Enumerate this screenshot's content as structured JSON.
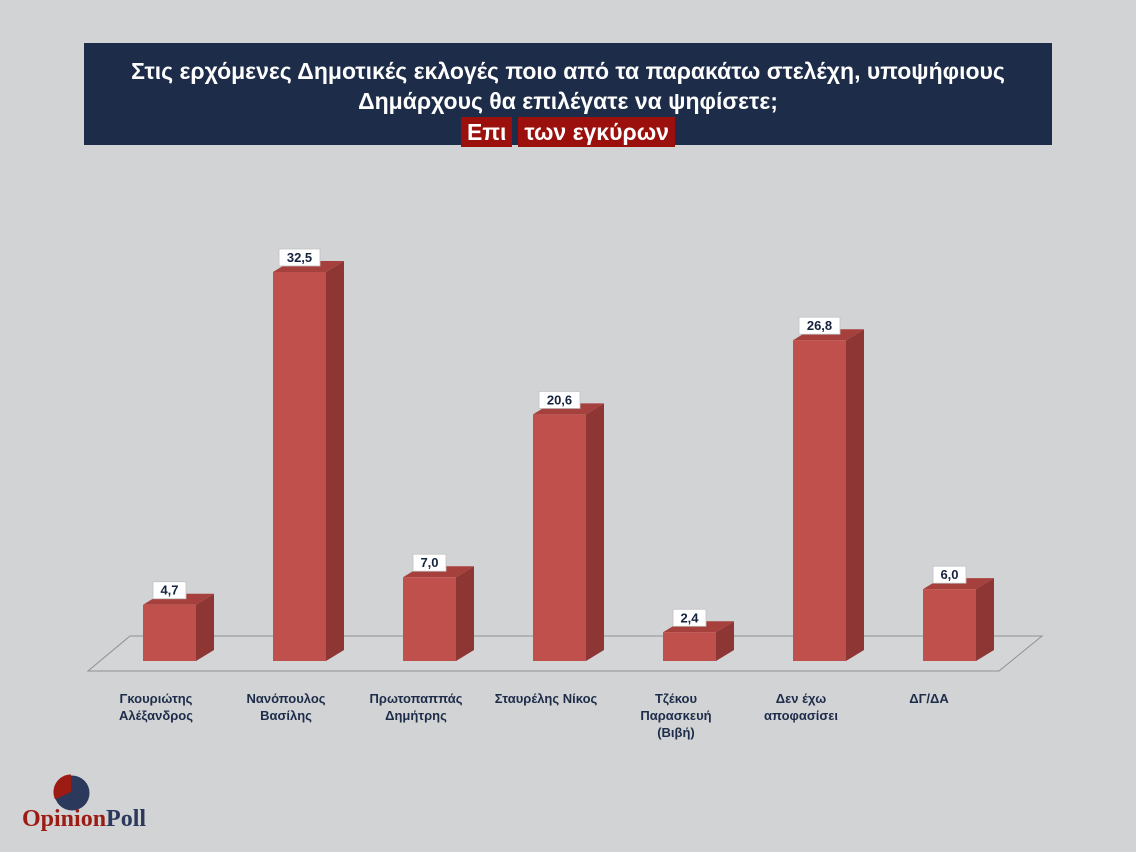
{
  "page": {
    "background": "#d2d3d5"
  },
  "header": {
    "background": "#1d2c49",
    "line1": "Στις ερχόμενες Δημοτικές εκλογές ποιο από τα παρακάτω στελέχη, υποψήφιους",
    "line2": "Δημάρχους θα επιλέγατε να ψηφίσετε;",
    "highlight": {
      "background": "#9b100d",
      "part1": "Επι",
      "part2": "των εγκύρων"
    }
  },
  "chart_data": {
    "type": "bar",
    "style": "3d-column",
    "title": "Στις ερχόμενες Δημοτικές εκλογές ποιο από τα παρακάτω στελέχη, υποψήφιους Δημάρχους θα επιλέγατε να ψηφίσετε; Επι των εγκύρων",
    "categories": [
      [
        "Γκουριώτης",
        "Αλέξανδρος"
      ],
      [
        "Νανόπουλος",
        "Βασίλης"
      ],
      [
        "Πρωτοπαππάς",
        "Δημήτρης"
      ],
      [
        "Σταυρέλης Νίκος"
      ],
      [
        "Τζέκου",
        "Παρασκευή",
        "(Βιβή)"
      ],
      [
        "Δεν έχω",
        "αποφασίσει"
      ],
      [
        "ΔΓ/ΔΑ"
      ]
    ],
    "values": [
      4.7,
      32.5,
      7.0,
      20.6,
      2.4,
      26.8,
      6.0
    ],
    "value_labels": [
      "4,7",
      "32,5",
      "7,0",
      "20,6",
      "2,4",
      "26,8",
      "6,0"
    ],
    "values_are_percent": true,
    "xlabel": "",
    "ylabel": "",
    "ylim": [
      0,
      35
    ],
    "grid": false,
    "legend": false,
    "colors": {
      "bar_front": "#c0504b",
      "bar_top": "#a6403d",
      "bar_side": "#8d3634",
      "floor_fill": "#d4d5d7",
      "floor_stroke": "#909090",
      "value_label_text": "#16233f",
      "value_label_bg": "#ffffff",
      "category_text": "#1d2c49"
    }
  },
  "logo": {
    "text_opinion": "Opinion",
    "text_poll": "Poll",
    "colors": {
      "red": "#9c1b12",
      "navy": "#2b3a5c"
    }
  }
}
